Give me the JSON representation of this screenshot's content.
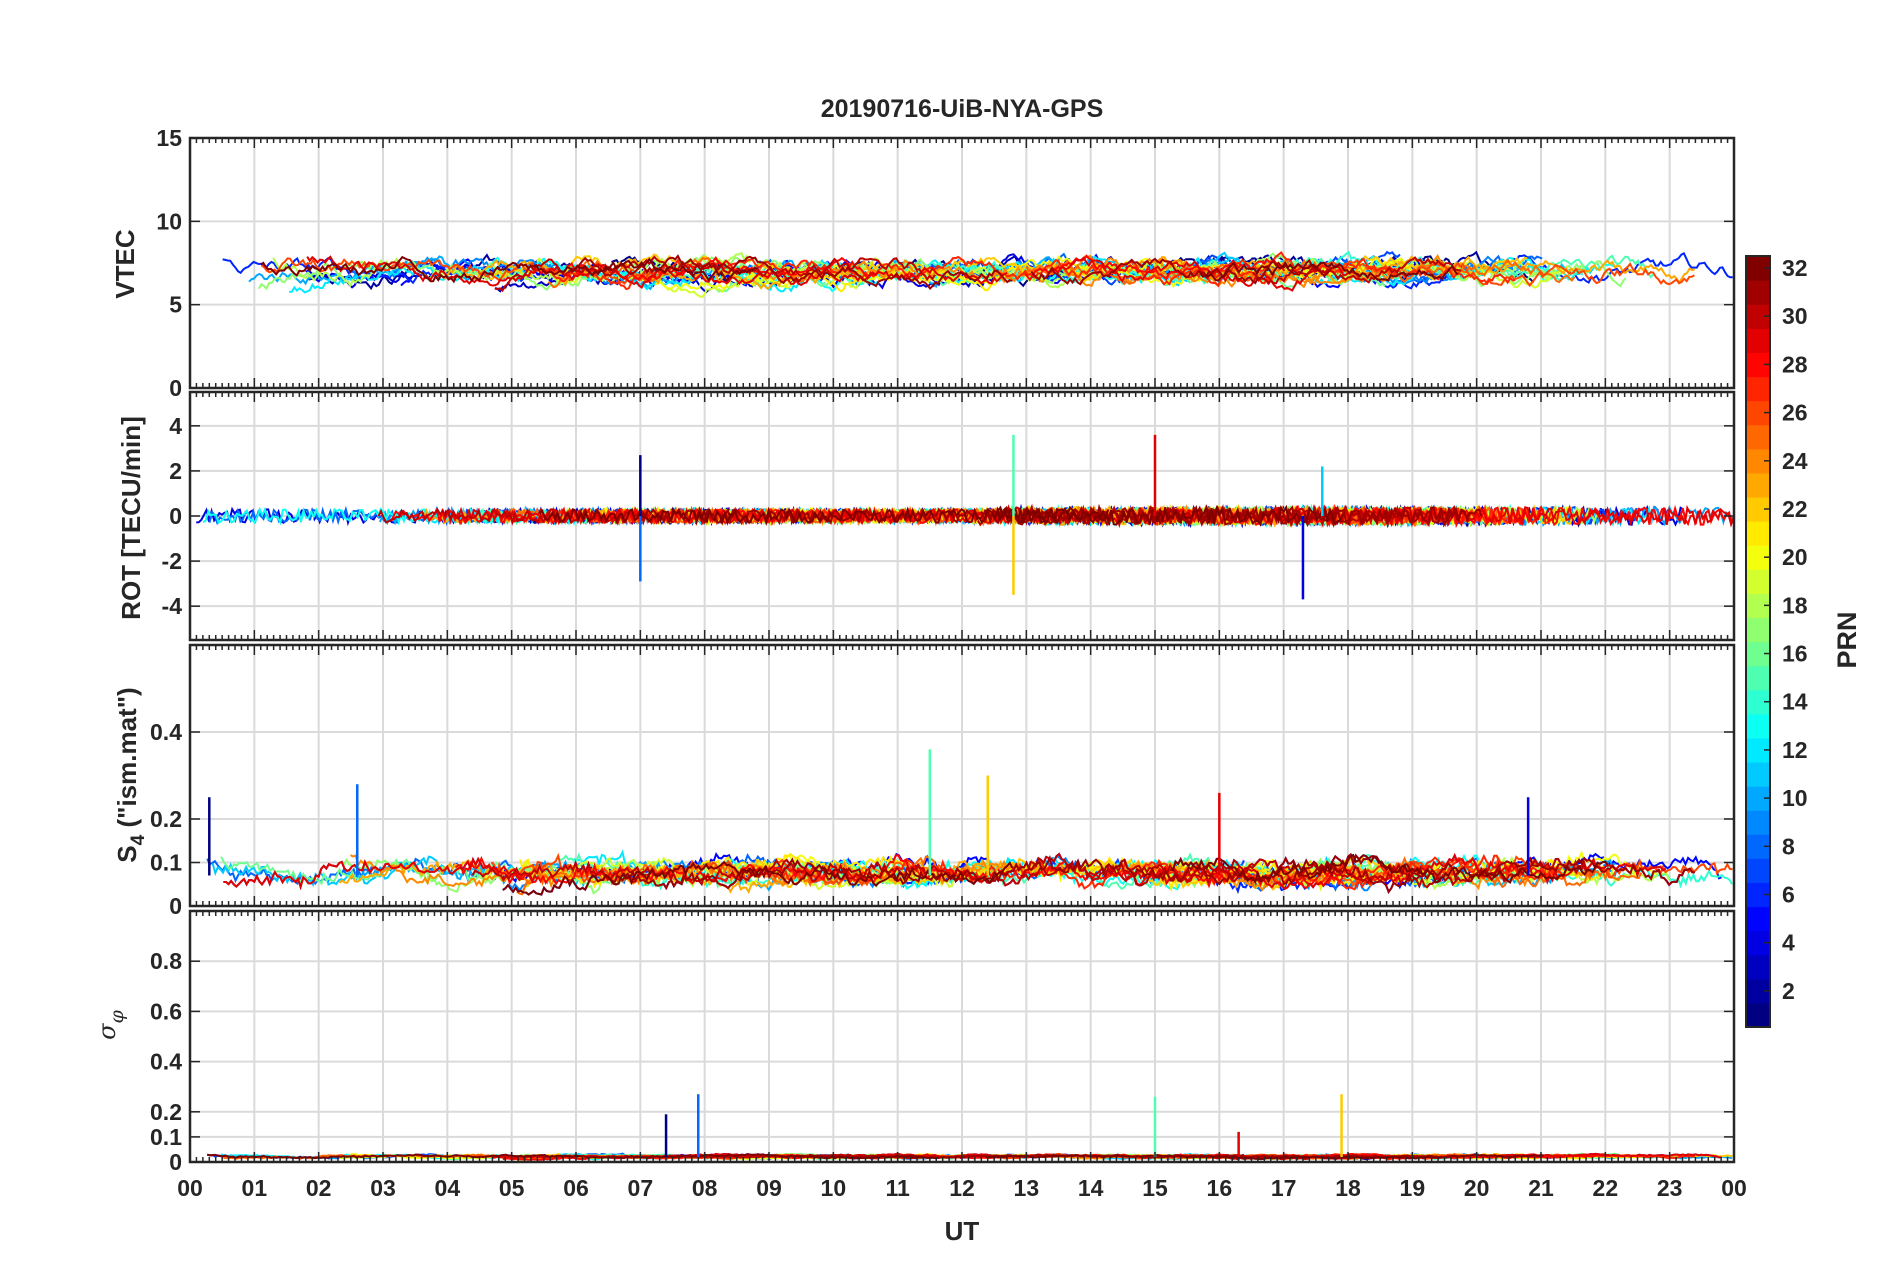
{
  "chart_data": {
    "type": "line",
    "title": "20190716-UiB-NYA-GPS",
    "xlabel": "UT",
    "x_tick_labels": [
      "00",
      "01",
      "02",
      "03",
      "04",
      "05",
      "06",
      "07",
      "08",
      "09",
      "10",
      "11",
      "12",
      "13",
      "14",
      "15",
      "16",
      "17",
      "18",
      "19",
      "20",
      "21",
      "22",
      "23",
      "00"
    ],
    "xlim": [
      0,
      24
    ],
    "panels": [
      {
        "id": "vtec",
        "ylabel": "VTEC",
        "ylim": [
          0,
          15
        ],
        "yticks": [
          0,
          5,
          10,
          15
        ],
        "ytick_labels": [
          "0",
          "5",
          "10",
          "15"
        ],
        "baseline": 7.0,
        "spread": 1.2,
        "series_count": 32
      },
      {
        "id": "rot",
        "ylabel": "ROT [TECU/min]",
        "ylim": [
          -5.5,
          5.5
        ],
        "yticks": [
          -4,
          -2,
          0,
          2,
          4
        ],
        "ytick_labels": [
          "-4",
          "-2",
          "0",
          "2",
          "4"
        ],
        "baseline": 0,
        "spread": 0.3,
        "peaks": [
          {
            "x": 7.0,
            "y": 2.7
          },
          {
            "x": 7.0,
            "y": -2.9
          },
          {
            "x": 12.8,
            "y": 3.6
          },
          {
            "x": 12.8,
            "y": -3.5
          },
          {
            "x": 15.0,
            "y": 3.6
          },
          {
            "x": 17.3,
            "y": -3.7
          },
          {
            "x": 17.6,
            "y": 2.2
          }
        ]
      },
      {
        "id": "s4",
        "ylabel": "S4 (\"ism.mat\")",
        "ylim": [
          0,
          0.6
        ],
        "yticks": [
          0,
          0.1,
          0.2,
          0.4
        ],
        "ytick_labels": [
          "0",
          "0.1",
          "0.2",
          "0.4"
        ],
        "baseline": 0.07,
        "spread": 0.04,
        "peaks": [
          {
            "x": 0.3,
            "y": 0.25
          },
          {
            "x": 2.6,
            "y": 0.28
          },
          {
            "x": 11.5,
            "y": 0.36
          },
          {
            "x": 12.4,
            "y": 0.3
          },
          {
            "x": 16.0,
            "y": 0.26
          },
          {
            "x": 20.8,
            "y": 0.25
          }
        ]
      },
      {
        "id": "sigma",
        "ylabel": "σφ",
        "ylim": [
          0,
          1.0
        ],
        "yticks": [
          0,
          0.1,
          0.2,
          0.4,
          0.6,
          0.8
        ],
        "ytick_labels": [
          "0",
          "0.1",
          "0.2",
          "0.4",
          "0.6",
          "0.8"
        ],
        "baseline": 0.02,
        "spread": 0.01,
        "peaks": [
          {
            "x": 7.4,
            "y": 0.19
          },
          {
            "x": 7.9,
            "y": 0.27
          },
          {
            "x": 15.0,
            "y": 0.26
          },
          {
            "x": 17.9,
            "y": 0.27
          },
          {
            "x": 16.3,
            "y": 0.12
          }
        ]
      }
    ],
    "colorbar": {
      "label": "PRN",
      "min": 1,
      "max": 32,
      "tick_labels": [
        "2",
        "4",
        "6",
        "8",
        "10",
        "12",
        "14",
        "16",
        "18",
        "20",
        "22",
        "24",
        "26",
        "28",
        "30",
        "32"
      ],
      "colormap": "jet"
    },
    "grid": true
  }
}
